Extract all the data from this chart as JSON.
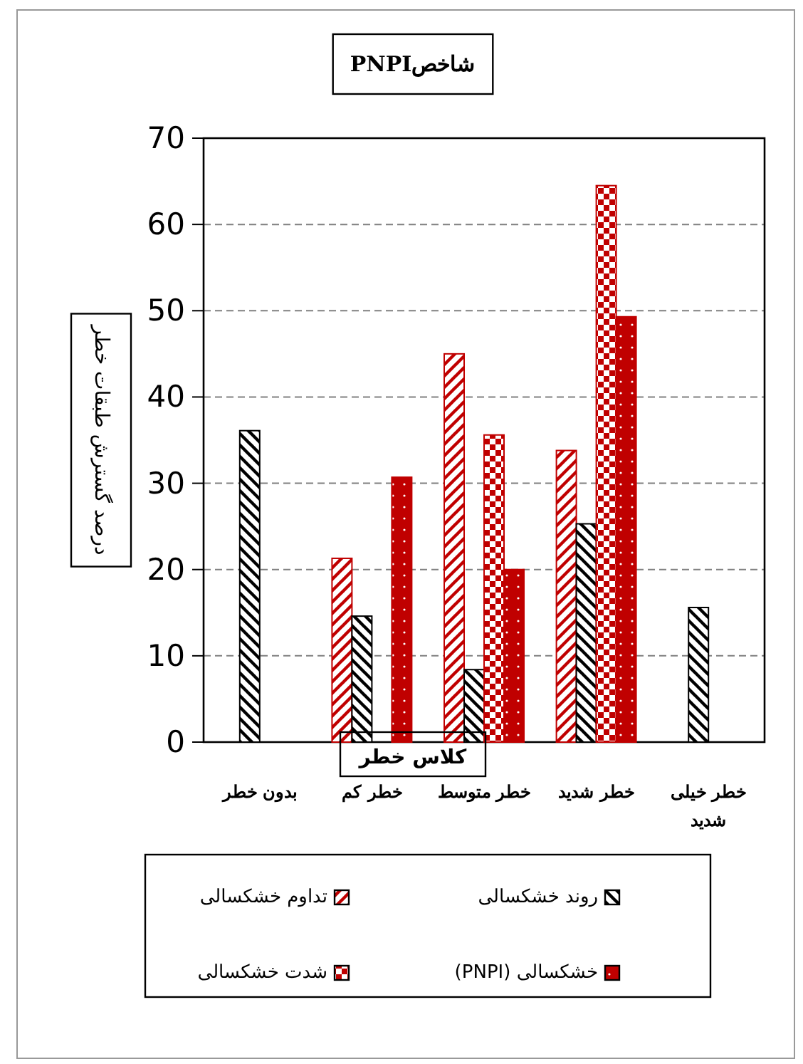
{
  "chart_data": {
    "type": "bar",
    "title": "شاخصPNPI",
    "xlabel": "کلاس خطر",
    "ylabel": "درصد گسترش طبقات خطر",
    "categories": [
      "بدون خطر",
      "خطر کم",
      "خطر متوسط",
      "خطر شدید",
      "خطر خیلی شدید"
    ],
    "series": [
      {
        "name": "تداوم خشکسالی",
        "color": "#c00000",
        "values": [
          0,
          21.3,
          45,
          33.8,
          0
        ]
      },
      {
        "name": "روند خشکسالی",
        "color": "#000000",
        "values": [
          36.1,
          14.6,
          8.4,
          25.3,
          15.6
        ]
      },
      {
        "name": "شدت خشکسالی",
        "color": "#c00000",
        "values": [
          0,
          0,
          35.6,
          64.5,
          0
        ]
      },
      {
        "name": "خشکسالی (PNPI)",
        "color": "#c00000",
        "values": [
          0,
          30.7,
          20,
          49.3,
          0
        ]
      }
    ],
    "ylim": [
      0,
      70
    ],
    "yticks": [
      0,
      10,
      20,
      30,
      40,
      50,
      60,
      70
    ],
    "grid": "y",
    "legend": "bottom"
  }
}
